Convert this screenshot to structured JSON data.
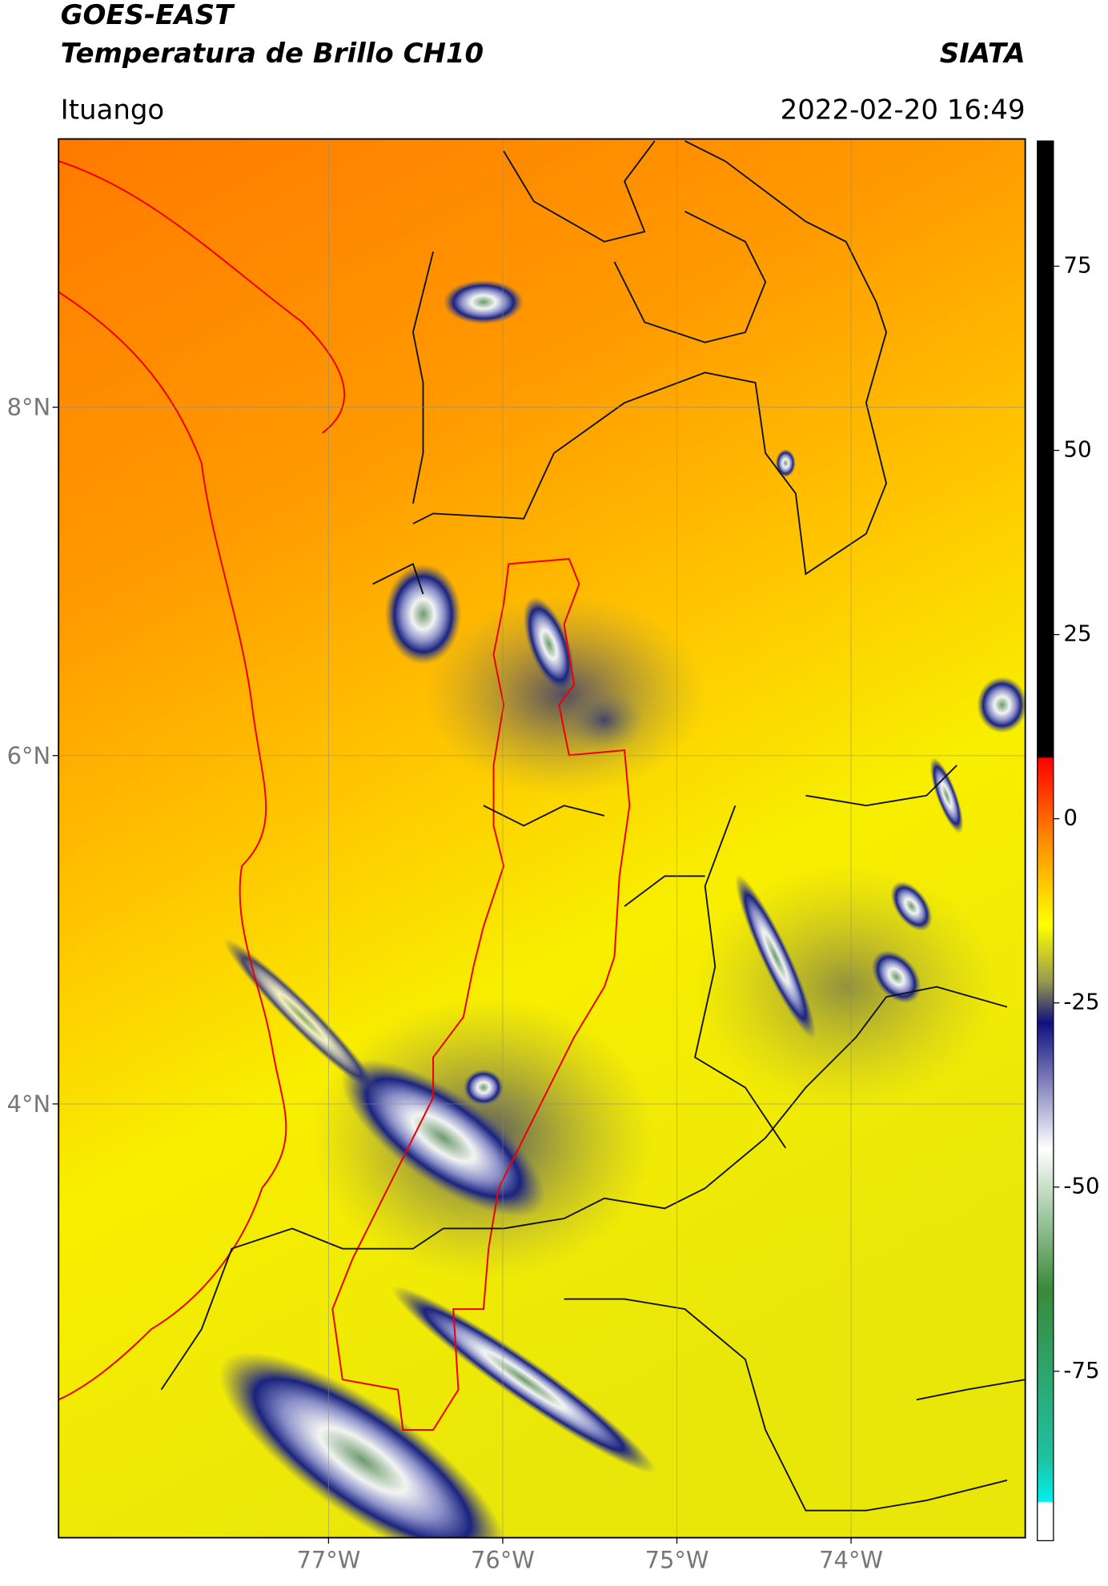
{
  "header": {
    "title": "GOES-EAST",
    "subtitle": "Temperatura de Brillo CH10",
    "source": "SIATA",
    "region": "Ituango",
    "timestamp": "2022-02-20 16:49"
  },
  "map": {
    "xlim": [
      -78.55,
      -73.0
    ],
    "ylim": [
      1.51,
      9.54
    ],
    "xticks": [
      {
        "value": -77,
        "label": "77°W"
      },
      {
        "value": -76,
        "label": "76°W"
      },
      {
        "value": -75,
        "label": "75°W"
      },
      {
        "value": -74,
        "label": "74°W"
      }
    ],
    "yticks": [
      {
        "value": 4,
        "label": "4°N"
      },
      {
        "value": 6,
        "label": "6°N"
      },
      {
        "value": 8,
        "label": "8°N"
      }
    ],
    "grid": true
  },
  "colorbar": {
    "clim": [
      -98,
      92
    ],
    "ticks": [
      75,
      50,
      25,
      0,
      -25,
      -50,
      -75
    ]
  }
}
